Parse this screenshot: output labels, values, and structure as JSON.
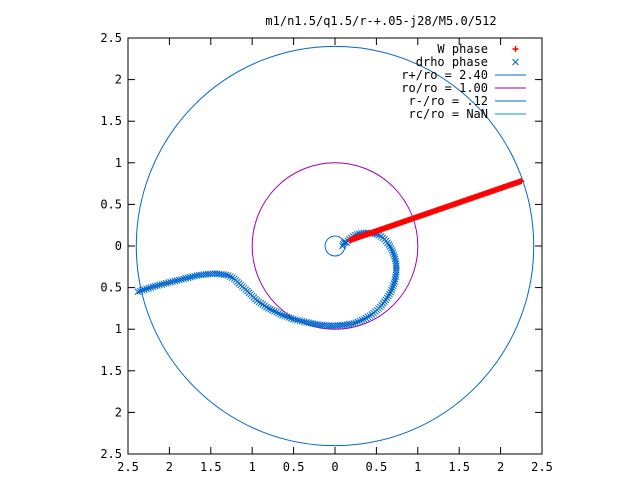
{
  "chart_data": {
    "type": "scatter",
    "title": "m1/n1.5/q1.5/r-+.05-j28/M5.0/512",
    "xlabel": "",
    "ylabel": "",
    "xlim": [
      -2.5,
      2.5
    ],
    "ylim": [
      -2.5,
      2.5
    ],
    "grid": false,
    "legend_position": "top-right",
    "x_tick_labels": [
      "2.5",
      "2",
      "1.5",
      "1",
      "0.5",
      "0",
      "0.5",
      "1",
      "1.5",
      "2",
      "2.5"
    ],
    "y_tick_labels": [
      "2.5",
      "2",
      "1.5",
      "1",
      "0.5",
      "0",
      "0.5",
      "1",
      "1.5",
      "2",
      "2.5"
    ],
    "series": [
      {
        "name": "W phase",
        "kind": "points",
        "marker": "plus",
        "color": "#ff0000",
        "line": {
          "from": [
            0.18,
            0.07
          ],
          "to": [
            2.25,
            0.78
          ]
        },
        "count": 130
      },
      {
        "name": "drho phase",
        "kind": "points",
        "marker": "cross",
        "color": "#0066cc",
        "points": [
          [
            0.14,
            0.04
          ],
          [
            0.18,
            0.09
          ],
          [
            0.24,
            0.13
          ],
          [
            0.3,
            0.15
          ],
          [
            0.38,
            0.16
          ],
          [
            0.46,
            0.15
          ],
          [
            0.54,
            0.13
          ],
          [
            0.6,
            0.08
          ],
          [
            0.65,
            0.02
          ],
          [
            0.69,
            -0.05
          ],
          [
            0.72,
            -0.13
          ],
          [
            0.74,
            -0.22
          ],
          [
            0.74,
            -0.32
          ],
          [
            0.72,
            -0.43
          ],
          [
            0.68,
            -0.54
          ],
          [
            0.62,
            -0.64
          ],
          [
            0.54,
            -0.74
          ],
          [
            0.45,
            -0.82
          ],
          [
            0.35,
            -0.88
          ],
          [
            0.23,
            -0.93
          ],
          [
            0.1,
            -0.95
          ],
          [
            -0.03,
            -0.96
          ],
          [
            -0.17,
            -0.95
          ],
          [
            -0.33,
            -0.92
          ],
          [
            -0.5,
            -0.88
          ],
          [
            -0.66,
            -0.82
          ],
          [
            -0.82,
            -0.74
          ],
          [
            -0.95,
            -0.65
          ],
          [
            -1.06,
            -0.54
          ],
          [
            -1.15,
            -0.46
          ],
          [
            -1.22,
            -0.39
          ],
          [
            -1.3,
            -0.35
          ],
          [
            -1.45,
            -0.33
          ],
          [
            -1.65,
            -0.35
          ],
          [
            -1.85,
            -0.4
          ],
          [
            -2.05,
            -0.45
          ],
          [
            -2.2,
            -0.49
          ],
          [
            -2.32,
            -0.53
          ],
          [
            -2.38,
            -0.55
          ]
        ],
        "hook": [
          [
            0.14,
            0.04
          ],
          [
            0.12,
            0.05
          ],
          [
            0.11,
            0.04
          ],
          [
            0.1,
            0.02
          ],
          [
            0.09,
            0.0
          ]
        ],
        "count": 170
      },
      {
        "name": "r+/ro = 2.40",
        "kind": "circle",
        "radius": 2.4,
        "color": "#0066cc"
      },
      {
        "name": "ro/ro = 1.00",
        "kind": "circle",
        "radius": 1.0,
        "color": "#a000b0"
      },
      {
        "name": "r-/ro =   .12",
        "kind": "circle",
        "radius": 0.12,
        "color": "#0066cc"
      },
      {
        "name": "rc/ro = NaN",
        "kind": "circle",
        "radius": null,
        "color": "#00a0a0"
      }
    ]
  }
}
